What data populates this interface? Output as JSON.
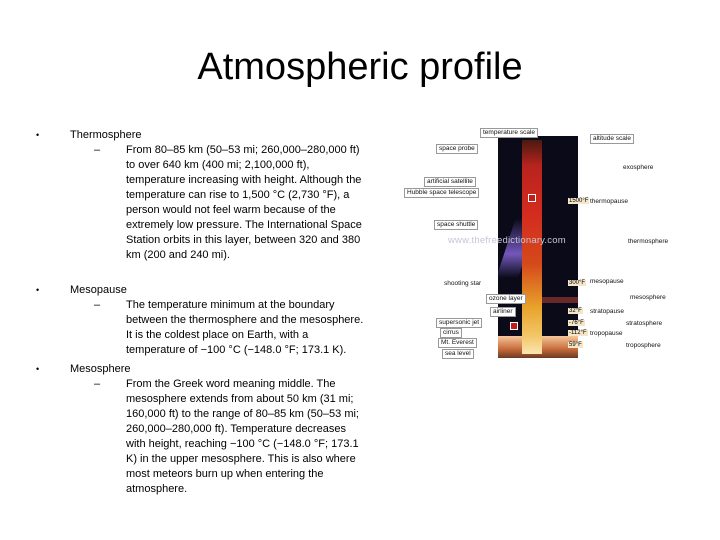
{
  "title": "Atmospheric profile",
  "bullets": [
    {
      "heading": "Thermosphere",
      "detail": "From 80–85 km (50–53 mi; 260,000–280,000 ft) to over 640 km (400 mi; 2,100,000 ft), temperature increasing with height. Although the temperature can rise to 1,500 °C (2,730 °F), a person would not feel warm because of the extremely low pressure. The International Space Station orbits in this layer, between 320 and 380 km (200 and 240 mi)."
    },
    {
      "heading": "Mesopause",
      "detail": "The temperature minimum at the boundary between the thermosphere and the mesosphere. It is the coldest place on Earth, with a temperature of −100 °C (−148.0 °F; 173.1 K)."
    },
    {
      "heading": "Mesosphere",
      "detail": "From the Greek word meaning middle. The mesosphere extends from about 50 km (31 mi; 160,000 ft) to the range of 80–85 km (50–53 mi; 260,000–280,000 ft). Temperature decreases with height, reaching −100 °C (−148.0 °F; 173.1 K) in the upper mesosphere. This is also where most meteors burn up when entering the atmosphere."
    }
  ],
  "diagram": {
    "watermark": "www.thefreedictionary.com",
    "left_labels": {
      "temperature_scale": "temperature scale",
      "space_probe": "space probe",
      "artificial_satellite": "artificial satellite",
      "hubble": "Hubble space telescope",
      "space_shuttle": "space shuttle",
      "aurora": "aurora",
      "shooting_star": "shooting star",
      "ozone_layer": "ozone layer",
      "airliner": "airliner",
      "supersonic_jet": "supersonic jet",
      "cirrus": "cirrus",
      "mt_everest": "Mt. Everest",
      "sea_level": "sea level"
    },
    "right_labels": {
      "altitude_scale": "altitude scale",
      "exosphere": "exosphere",
      "thermopause": "thermopause",
      "thermosphere": "thermosphere",
      "mesopause": "mesopause",
      "mesosphere": "mesosphere",
      "stratopause": "stratopause",
      "stratosphere": "stratosphere",
      "tropopause": "tropopause",
      "troposphere": "troposphere"
    },
    "scale_ticks": [
      "1500°F",
      "300°F",
      "32°F",
      "-76°F",
      "-112°F",
      "59°F"
    ]
  }
}
